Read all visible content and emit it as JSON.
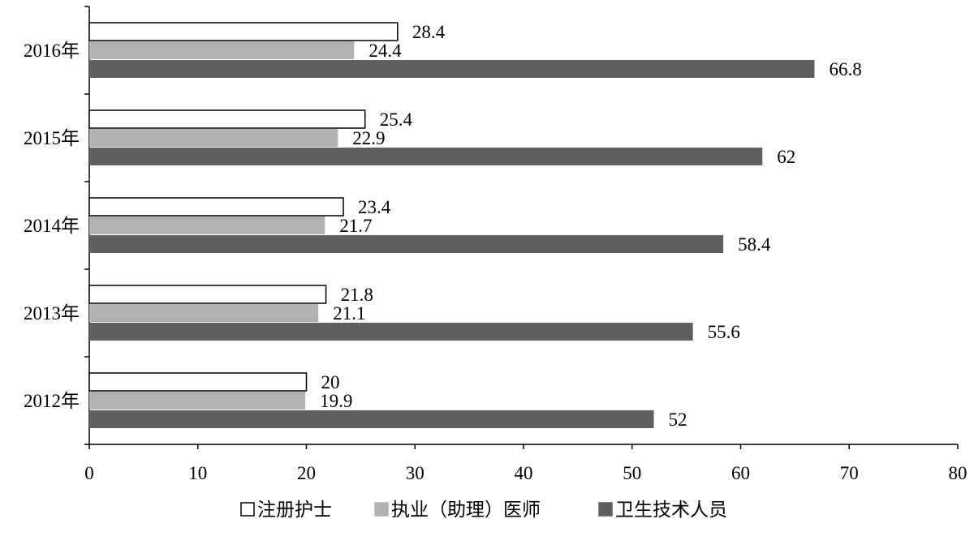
{
  "chart_data": {
    "type": "bar",
    "orientation": "horizontal",
    "categories": [
      "2012年",
      "2013年",
      "2014年",
      "2015年",
      "2016年"
    ],
    "series": [
      {
        "name": "注册护士",
        "values": [
          20,
          21.8,
          23.4,
          25.4,
          28.4
        ],
        "color": "#ffffff",
        "stroke": "#000000"
      },
      {
        "name": "执业（助理）医师",
        "values": [
          19.9,
          21.1,
          21.7,
          22.9,
          24.4
        ],
        "color": "#b2b2b2",
        "stroke": "#b2b2b2"
      },
      {
        "name": "卫生技术人员",
        "values": [
          52,
          55.6,
          58.4,
          62,
          66.8
        ],
        "color": "#5f5f5f",
        "stroke": "#5f5f5f"
      }
    ],
    "data_labels": [
      [
        "20",
        "21.8",
        "23.4",
        "25.4",
        "28.4"
      ],
      [
        "19.9",
        "21.1",
        "21.7",
        "22.9",
        "24.4"
      ],
      [
        "52",
        "55.6",
        "58.4",
        "62",
        "66.8"
      ]
    ],
    "xlim": [
      0,
      80
    ],
    "x_ticks": [
      0,
      10,
      20,
      30,
      40,
      50,
      60,
      70,
      80
    ],
    "x_tick_labels": [
      "0",
      "10",
      "20",
      "30",
      "40",
      "50",
      "60",
      "70",
      "80"
    ],
    "title": "",
    "xlabel": "",
    "ylabel": "",
    "grid": false,
    "legend_position": "bottom"
  }
}
